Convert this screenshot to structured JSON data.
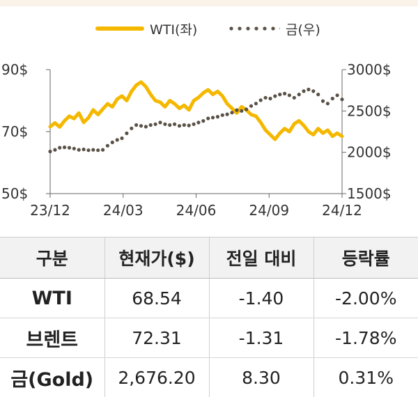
{
  "chart_data": {
    "type": "line",
    "x_ticks": [
      "23/12",
      "24/03",
      "24/06",
      "24/09",
      "24/12"
    ],
    "y_left": {
      "ticks": [
        "90$",
        "70$",
        "50$"
      ],
      "range": [
        50,
        90
      ]
    },
    "y_right": {
      "ticks": [
        "3000$",
        "2500$",
        "2000$",
        "1500$"
      ],
      "range": [
        1500,
        3000
      ]
    },
    "series": [
      {
        "name": "WTI(좌)",
        "axis": "left",
        "color": "#f5b800",
        "style": "solid",
        "values": [
          71.6,
          72.8,
          71.5,
          73.5,
          75.0,
          74.2,
          76.0,
          73.0,
          74.5,
          77.0,
          75.5,
          77.3,
          79.0,
          78.0,
          80.5,
          81.5,
          80.0,
          83.0,
          85.0,
          86.0,
          84.5,
          82.0,
          80.0,
          79.5,
          78.0,
          80.0,
          79.0,
          77.5,
          78.5,
          77.0,
          80.0,
          81.0,
          82.5,
          83.5,
          82.0,
          83.0,
          81.5,
          79.0,
          77.5,
          76.0,
          78.0,
          77.0,
          75.5,
          75.0,
          73.0,
          70.5,
          69.0,
          67.5,
          69.5,
          71.0,
          70.0,
          72.5,
          73.5,
          72.0,
          70.0,
          69.0,
          71.0,
          69.5,
          70.5,
          68.5,
          69.5,
          68.5
        ]
      },
      {
        "name": "금(우)",
        "axis": "right",
        "color": "#5a5147",
        "style": "dotted",
        "values": [
          2010,
          2030,
          2055,
          2060,
          2055,
          2045,
          2030,
          2035,
          2025,
          2030,
          2025,
          2030,
          2080,
          2120,
          2150,
          2170,
          2230,
          2290,
          2330,
          2320,
          2310,
          2330,
          2340,
          2360,
          2340,
          2330,
          2340,
          2320,
          2330,
          2325,
          2340,
          2360,
          2380,
          2410,
          2420,
          2430,
          2450,
          2460,
          2480,
          2510,
          2500,
          2520,
          2560,
          2590,
          2630,
          2660,
          2650,
          2680,
          2700,
          2710,
          2690,
          2660,
          2700,
          2740,
          2760,
          2740,
          2700,
          2620,
          2590,
          2650,
          2690,
          2640
        ]
      }
    ],
    "legend": "top"
  },
  "table": {
    "headers": [
      "구분",
      "현재가($)",
      "전일 대비",
      "등락률"
    ],
    "rows": [
      [
        "WTI",
        "68.54",
        "-1.40",
        "-2.00%"
      ],
      [
        "브렌트",
        "72.31",
        "-1.31",
        "-1.78%"
      ],
      [
        "금(Gold)",
        "2,676.20",
        "8.30",
        "0.31%"
      ]
    ]
  }
}
